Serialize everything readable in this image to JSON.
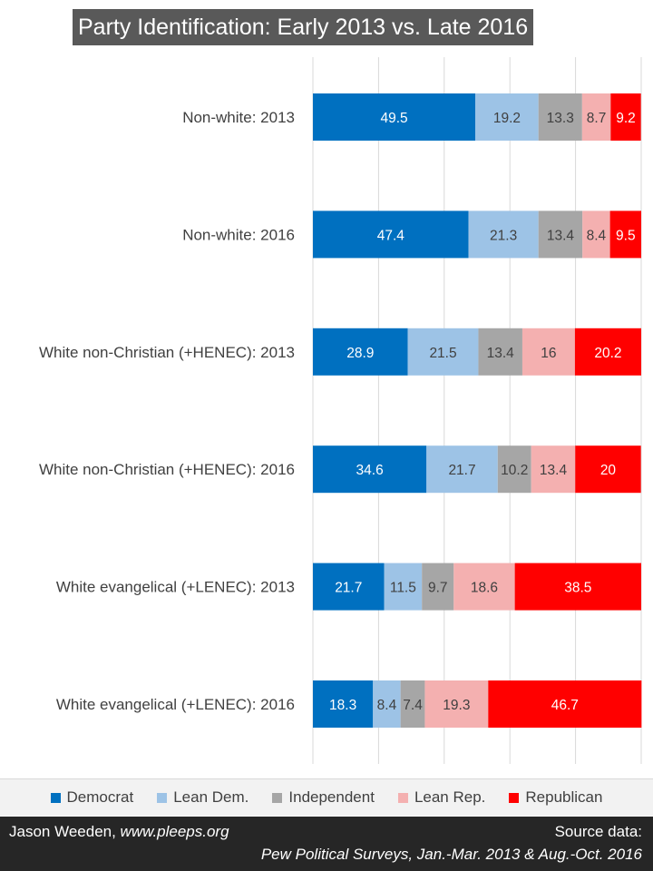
{
  "chart_data": {
    "type": "bar",
    "stacked": true,
    "orientation": "horizontal",
    "title": "Party Identification: Early 2013 vs. Late 2016",
    "categories": [
      "Non-white: 2013",
      "Non-white: 2016",
      "White non-Christian (+HENEC): 2013",
      "White non-Christian (+HENEC): 2016",
      "White evangelical (+LENEC): 2013",
      "White evangelical (+LENEC): 2016"
    ],
    "series": [
      {
        "name": "Democrat",
        "color": "#0070c0",
        "label_color": "#ffffff",
        "values": [
          49.5,
          47.4,
          28.9,
          34.6,
          21.7,
          18.3
        ]
      },
      {
        "name": "Lean Dem.",
        "color": "#9dc3e6",
        "label_color": "#404040",
        "values": [
          19.2,
          21.3,
          21.5,
          21.7,
          11.5,
          8.4
        ]
      },
      {
        "name": "Independent",
        "color": "#a6a6a6",
        "label_color": "#404040",
        "values": [
          13.3,
          13.4,
          13.4,
          10.2,
          9.7,
          7.4
        ]
      },
      {
        "name": "Lean Rep.",
        "color": "#f4b0b0",
        "label_color": "#404040",
        "values": [
          8.7,
          8.4,
          16,
          13.4,
          18.6,
          19.3
        ]
      },
      {
        "name": "Republican",
        "color": "#ff0000",
        "label_color": "#ffffff",
        "values": [
          9.2,
          9.5,
          20.2,
          20,
          38.5,
          46.7
        ]
      }
    ],
    "xlim": [
      0,
      100
    ],
    "grid": true,
    "legend_position": "bottom"
  },
  "footer": {
    "author_name": "Jason Weeden, ",
    "author_site": "www.pleeps.org",
    "source_label": "Source data:",
    "source_text": "Pew Political Surveys, Jan.-Mar. 2013 & Aug.-Oct. 2016"
  }
}
